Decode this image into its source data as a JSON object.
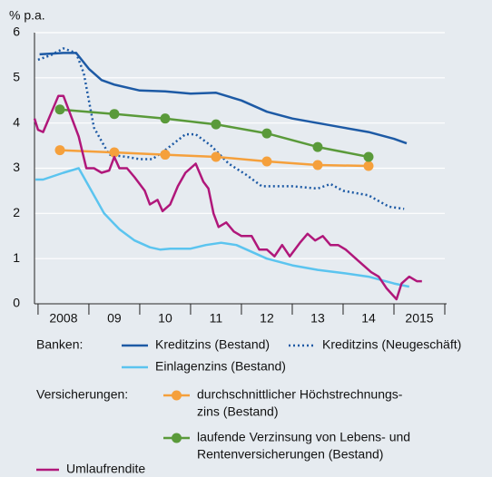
{
  "chart_data": {
    "type": "line",
    "y_unit": "% p.a.",
    "xlim": [
      2007.93,
      2016
    ],
    "ylim": [
      0,
      6
    ],
    "yticks": [
      0,
      1,
      2,
      3,
      4,
      5,
      6
    ],
    "grid": true,
    "xticks": [
      {
        "value": 2008.5,
        "label": "2008"
      },
      {
        "value": 2009.5,
        "label": "09"
      },
      {
        "value": 2010.5,
        "label": "10"
      },
      {
        "value": 2011.5,
        "label": "11"
      },
      {
        "value": 2012.5,
        "label": "12"
      },
      {
        "value": 2013.5,
        "label": "13"
      },
      {
        "value": 2014.5,
        "label": "14"
      },
      {
        "value": 2015.5,
        "label": "2015"
      }
    ],
    "legend_groups": [
      "Banken:",
      "Versicherungen:"
    ],
    "series": [
      {
        "name": "Kreditzins (Bestand)",
        "color": "#1d5aa5",
        "dash": false,
        "markers": false,
        "x": [
          2008.03,
          2008.5,
          2008.75,
          2009.0,
          2009.25,
          2009.5,
          2010.0,
          2010.5,
          2011.0,
          2011.5,
          2012.0,
          2012.5,
          2013.0,
          2013.5,
          2014.0,
          2014.5,
          2015.0,
          2015.25
        ],
        "values": [
          5.52,
          5.55,
          5.55,
          5.2,
          4.95,
          4.85,
          4.72,
          4.7,
          4.65,
          4.67,
          4.5,
          4.25,
          4.1,
          4.0,
          3.9,
          3.8,
          3.65,
          3.55
        ]
      },
      {
        "name": "Kreditzins (Neugeschäft)",
        "color": "#1d5aa5",
        "dash": true,
        "markers": false,
        "x": [
          2008.0,
          2008.25,
          2008.5,
          2008.75,
          2008.9,
          2009.1,
          2009.4,
          2009.75,
          2010.0,
          2010.25,
          2010.5,
          2010.9,
          2011.1,
          2011.4,
          2011.75,
          2012.1,
          2012.4,
          2012.75,
          2013.0,
          2013.5,
          2013.75,
          2014.0,
          2014.5,
          2014.9,
          2015.2
        ],
        "values": [
          5.4,
          5.5,
          5.65,
          5.55,
          5.1,
          3.9,
          3.3,
          3.25,
          3.2,
          3.2,
          3.4,
          3.75,
          3.75,
          3.5,
          3.1,
          2.85,
          2.6,
          2.6,
          2.6,
          2.55,
          2.65,
          2.5,
          2.4,
          2.15,
          2.1
        ]
      },
      {
        "name": "Einlagenzins (Bestand)",
        "color": "#5bc4ef",
        "dash": false,
        "markers": false,
        "x": [
          2007.95,
          2008.1,
          2008.5,
          2008.8,
          2009.0,
          2009.3,
          2009.6,
          2009.9,
          2010.2,
          2010.4,
          2010.6,
          2011.0,
          2011.3,
          2011.6,
          2011.9,
          2012.2,
          2012.5,
          2013.0,
          2013.5,
          2014.0,
          2014.5,
          2015.0,
          2015.3
        ],
        "values": [
          2.75,
          2.75,
          2.9,
          3.0,
          2.6,
          2.0,
          1.65,
          1.4,
          1.25,
          1.2,
          1.22,
          1.22,
          1.3,
          1.35,
          1.3,
          1.15,
          1.0,
          0.85,
          0.75,
          0.68,
          0.6,
          0.45,
          0.38
        ]
      },
      {
        "name": [
          "durchschnittlicher Höchstrechnungs-",
          "zins (Bestand)"
        ],
        "color": "#f5a03c",
        "dash": false,
        "markers": true,
        "x": [
          2008.43,
          2009.5,
          2010.5,
          2011.5,
          2012.5,
          2013.5,
          2014.5
        ],
        "values": [
          3.4,
          3.35,
          3.3,
          3.25,
          3.15,
          3.07,
          3.05
        ]
      },
      {
        "name": [
          "laufende Verzinsung von Lebens- und",
          "Rentenversicherungen (Bestand)"
        ],
        "color": "#5a9a3a",
        "dash": false,
        "markers": true,
        "x": [
          2008.43,
          2009.5,
          2010.5,
          2011.5,
          2012.5,
          2013.5,
          2014.5
        ],
        "values": [
          4.3,
          4.2,
          4.1,
          3.97,
          3.77,
          3.47,
          3.25
        ]
      },
      {
        "name": "Umlaufrendite",
        "color": "#b0177a",
        "dash": false,
        "markers": false,
        "x": [
          2007.93,
          2008.0,
          2008.1,
          2008.25,
          2008.4,
          2008.5,
          2008.6,
          2008.8,
          2008.95,
          2009.1,
          2009.25,
          2009.4,
          2009.5,
          2009.6,
          2009.75,
          2009.9,
          2010.1,
          2010.2,
          2010.35,
          2010.45,
          2010.6,
          2010.75,
          2010.9,
          2011.1,
          2011.25,
          2011.35,
          2011.45,
          2011.55,
          2011.7,
          2011.85,
          2012.0,
          2012.2,
          2012.35,
          2012.5,
          2012.65,
          2012.8,
          2012.95,
          2013.15,
          2013.3,
          2013.45,
          2013.6,
          2013.75,
          2013.9,
          2014.05,
          2014.3,
          2014.55,
          2014.7,
          2014.85,
          2015.05,
          2015.15,
          2015.3,
          2015.45,
          2015.55
        ],
        "values": [
          4.1,
          3.85,
          3.8,
          4.2,
          4.6,
          4.6,
          4.3,
          3.7,
          3.0,
          3.0,
          2.9,
          2.95,
          3.25,
          3.0,
          3.0,
          2.8,
          2.5,
          2.2,
          2.3,
          2.05,
          2.2,
          2.6,
          2.9,
          3.1,
          2.7,
          2.55,
          2.0,
          1.7,
          1.8,
          1.6,
          1.5,
          1.5,
          1.2,
          1.2,
          1.05,
          1.3,
          1.05,
          1.35,
          1.55,
          1.4,
          1.5,
          1.3,
          1.3,
          1.2,
          0.95,
          0.7,
          0.6,
          0.35,
          0.1,
          0.45,
          0.6,
          0.5,
          0.5
        ]
      }
    ]
  }
}
